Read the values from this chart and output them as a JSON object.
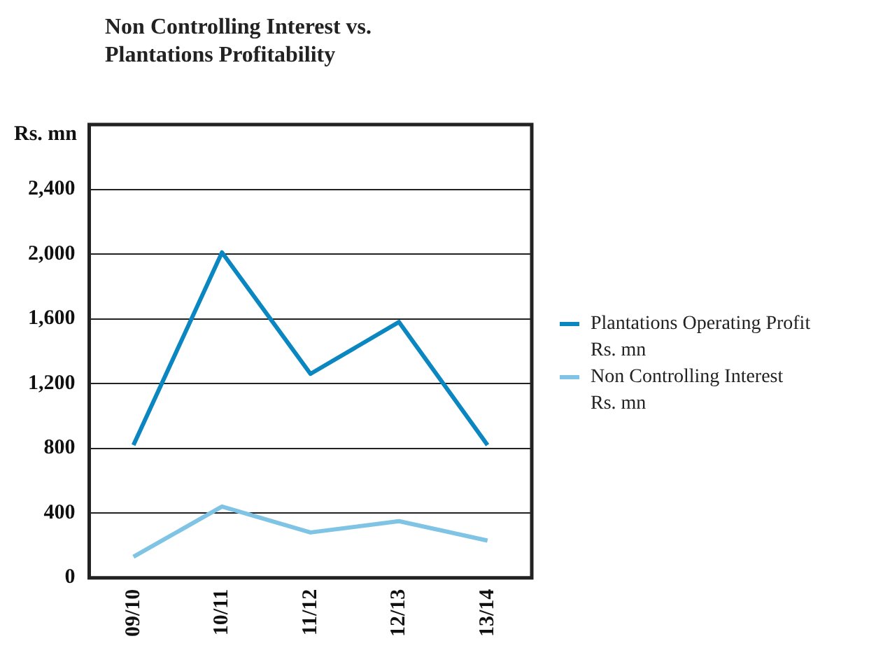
{
  "chart_data": {
    "type": "line",
    "title": "Non Controlling Interest vs.\nPlantations Profitability",
    "ylabel": "Rs. mn",
    "categories": [
      "09/10",
      "10/11",
      "11/12",
      "12/13",
      "13/14"
    ],
    "series": [
      {
        "name": "Plantations Operating Profit\nRs. mn",
        "color": "#0a86c0",
        "values": [
          820,
          2010,
          1260,
          1580,
          820
        ]
      },
      {
        "name": "Non Controlling Interest\nRs. mn",
        "color": "#7fc4e4",
        "values": [
          130,
          440,
          280,
          350,
          230
        ]
      }
    ],
    "ylim": [
      0,
      2800
    ],
    "yticks": [
      0,
      400,
      800,
      {
        "value": 1200,
        "label": "1,200"
      },
      {
        "value": 1600,
        "label": "1,600"
      },
      {
        "value": 2000,
        "label": "2,000"
      },
      {
        "value": 2400,
        "label": "2,400"
      }
    ],
    "grid": "y",
    "legend": "right",
    "marker": "none"
  }
}
